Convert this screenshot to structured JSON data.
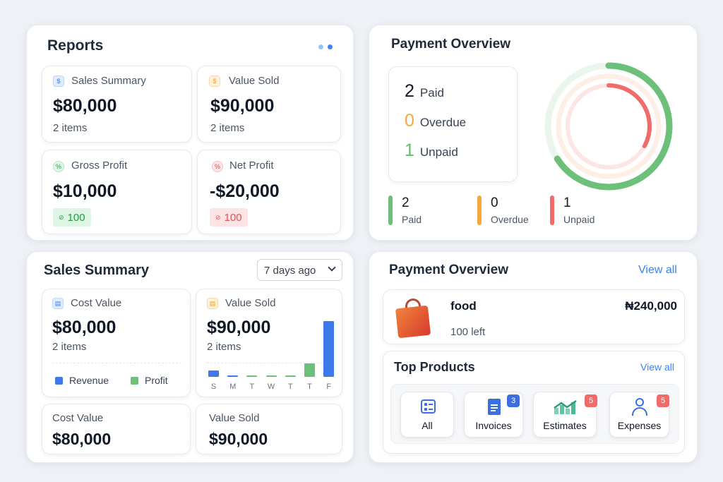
{
  "reports": {
    "title": "Reports",
    "cards": [
      {
        "label": "Sales Summary",
        "value": "$80,000",
        "sub": "2 items"
      },
      {
        "label": "Value Sold",
        "value": "$90,000",
        "sub": "2 items"
      },
      {
        "label": "Gross Profit",
        "value": "$10,000",
        "badge": "100"
      },
      {
        "label": "Net Profit",
        "value": "-$20,000",
        "badge": "100"
      }
    ]
  },
  "payment_overview": {
    "title": "Payment Overview",
    "summary": [
      {
        "num": "2",
        "label": "Paid"
      },
      {
        "num": "0",
        "label": "Overdue"
      },
      {
        "num": "1",
        "label": "Unpaid"
      }
    ],
    "stats": [
      {
        "num": "2",
        "label": "Paid"
      },
      {
        "num": "0",
        "label": "Overdue"
      },
      {
        "num": "1",
        "label": "Unpaid"
      }
    ],
    "colors": {
      "paid": "#6cc07a",
      "overdue": "#f5a93b",
      "unpaid": "#f26b6b"
    },
    "rings": {
      "paid": 0.66,
      "overdue": 0,
      "unpaid": 0.33
    }
  },
  "sales_summary": {
    "title": "Sales Summary",
    "period": "7 days ago",
    "cost_card": {
      "label": "Cost Value",
      "value": "$80,000",
      "sub": "2 items"
    },
    "sold_card": {
      "label": "Value Sold",
      "value": "$90,000",
      "sub": "2 items"
    },
    "legend": {
      "revenue": "Revenue",
      "profit": "Profit"
    },
    "bottom": [
      {
        "label": "Cost Value",
        "value": "$80,000"
      },
      {
        "label": "Value Sold",
        "value": "$90,000"
      }
    ]
  },
  "chart_data": {
    "type": "bar",
    "categories": [
      "S",
      "M",
      "T",
      "W",
      "T",
      "T",
      "F"
    ],
    "series": [
      {
        "name": "Revenue",
        "values": [
          10,
          2,
          0,
          0,
          0,
          0,
          85
        ]
      },
      {
        "name": "Profit",
        "values": [
          0,
          0,
          2,
          2,
          2,
          20,
          0
        ]
      }
    ],
    "legend": [
      "Revenue",
      "Profit"
    ],
    "ylim": [
      0,
      90
    ]
  },
  "payment_overview_2": {
    "title": "Payment Overview",
    "view_all": "View all",
    "product": {
      "name": "food",
      "price": "₦240,000",
      "left": "100 left"
    }
  },
  "top_products": {
    "title": "Top Products",
    "view_all": "View all",
    "tiles": [
      {
        "label": "All"
      },
      {
        "label": "Invoices",
        "badge": "3"
      },
      {
        "label": "Estimates",
        "badge": "5"
      },
      {
        "label": "Expenses",
        "badge": "5"
      }
    ]
  }
}
